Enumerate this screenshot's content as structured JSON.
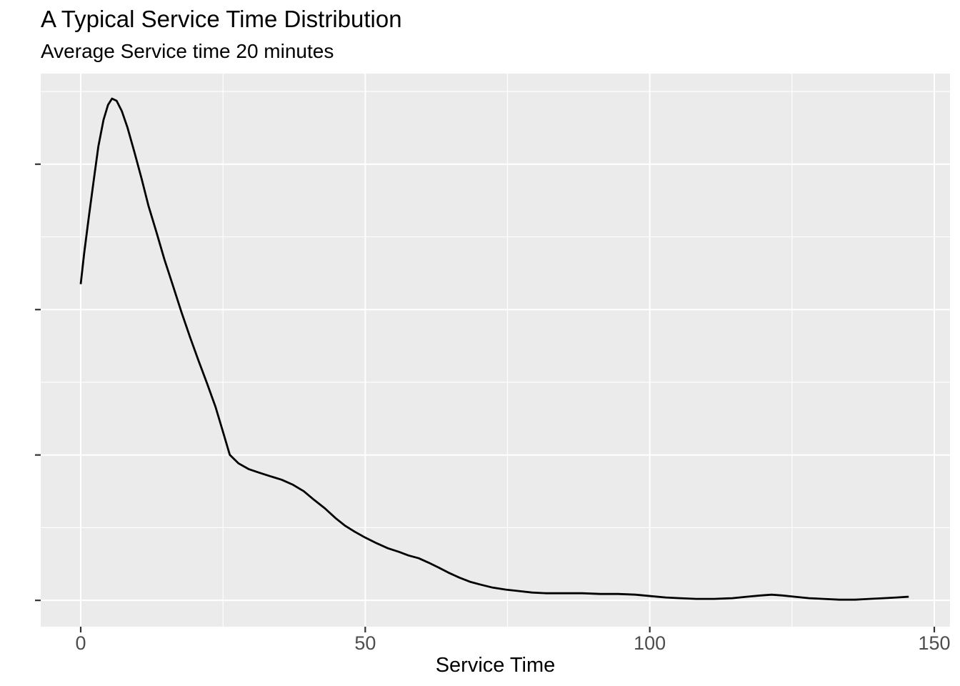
{
  "chart_data": {
    "type": "line",
    "subtype": "kernel-density",
    "title": "A Typical Service Time Distribution",
    "subtitle": "Average Service time 20 minutes",
    "xlabel": "Service Time",
    "ylabel": "",
    "x_tick_values": [
      0,
      50,
      100,
      150
    ],
    "x_tick_labels": [
      "0",
      "50",
      "100",
      "150"
    ],
    "y_tick_values": [
      0,
      0.01,
      0.02,
      0.03
    ],
    "y_tick_labels": [
      "",
      "",
      "",
      ""
    ],
    "y_tick_labels_visible": false,
    "x_minor": [
      25,
      75,
      125
    ],
    "y_minor": [
      0.005,
      0.015,
      0.025,
      0.035
    ],
    "xlim": [
      -7.03,
      152.76
    ],
    "ylim": [
      -0.00181,
      0.03623
    ],
    "grid": true,
    "legend": "none",
    "colors": {
      "panel_bg": "#EBEBEB",
      "grid": "#FFFFFF",
      "curve": "#000000",
      "axis_text": "#4D4D4D",
      "tick_mark": "#333333",
      "title_text": "#000000",
      "background": "#FFFFFF"
    },
    "series": [
      {
        "name": "service-time-density",
        "points": [
          [
            0.0,
            0.02175
          ],
          [
            0.6,
            0.02386
          ],
          [
            1.4,
            0.02631
          ],
          [
            2.3,
            0.02892
          ],
          [
            3.1,
            0.03122
          ],
          [
            4.0,
            0.03304
          ],
          [
            4.8,
            0.03407
          ],
          [
            5.5,
            0.03451
          ],
          [
            6.3,
            0.03436
          ],
          [
            7.2,
            0.03367
          ],
          [
            8.2,
            0.03255
          ],
          [
            9.4,
            0.03088
          ],
          [
            10.7,
            0.02901
          ],
          [
            11.9,
            0.02715
          ],
          [
            13.3,
            0.02533
          ],
          [
            14.7,
            0.02346
          ],
          [
            16.2,
            0.02165
          ],
          [
            17.7,
            0.01983
          ],
          [
            19.2,
            0.01811
          ],
          [
            20.7,
            0.01649
          ],
          [
            22.2,
            0.01492
          ],
          [
            23.7,
            0.0133
          ],
          [
            25.0,
            0.01159
          ],
          [
            26.2,
            0.01001
          ],
          [
            27.7,
            0.00943
          ],
          [
            29.5,
            0.00903
          ],
          [
            31.3,
            0.00879
          ],
          [
            33.3,
            0.00854
          ],
          [
            35.3,
            0.0083
          ],
          [
            37.3,
            0.00795
          ],
          [
            39.2,
            0.00751
          ],
          [
            41.0,
            0.00692
          ],
          [
            42.9,
            0.00633
          ],
          [
            44.8,
            0.00565
          ],
          [
            46.4,
            0.00515
          ],
          [
            48.2,
            0.00471
          ],
          [
            50.0,
            0.00432
          ],
          [
            52.0,
            0.00393
          ],
          [
            54.0,
            0.00358
          ],
          [
            55.9,
            0.00334
          ],
          [
            57.6,
            0.00309
          ],
          [
            59.4,
            0.0029
          ],
          [
            61.1,
            0.0026
          ],
          [
            62.9,
            0.00226
          ],
          [
            64.6,
            0.00191
          ],
          [
            66.5,
            0.00157
          ],
          [
            68.4,
            0.00128
          ],
          [
            70.3,
            0.00108
          ],
          [
            72.4,
            0.00088
          ],
          [
            74.7,
            0.00074
          ],
          [
            77.0,
            0.00064
          ],
          [
            79.3,
            0.00054
          ],
          [
            81.8,
            0.00049
          ],
          [
            85.0,
            0.00049
          ],
          [
            88.1,
            0.00049
          ],
          [
            91.3,
            0.00044
          ],
          [
            94.4,
            0.00044
          ],
          [
            97.5,
            0.00039
          ],
          [
            100.3,
            0.00029
          ],
          [
            102.8,
            0.0002
          ],
          [
            105.3,
            0.00015
          ],
          [
            108.2,
            0.0001
          ],
          [
            111.3,
            0.0001
          ],
          [
            114.5,
            0.00015
          ],
          [
            117.0,
            0.00025
          ],
          [
            119.5,
            0.00034
          ],
          [
            121.4,
            0.00039
          ],
          [
            123.3,
            0.00034
          ],
          [
            125.5,
            0.00025
          ],
          [
            128.0,
            0.00015
          ],
          [
            130.5,
            0.0001
          ],
          [
            133.3,
            5e-05
          ],
          [
            136.1,
            5e-05
          ],
          [
            138.6,
            0.0001
          ],
          [
            141.1,
            0.00015
          ],
          [
            143.4,
            0.0002
          ],
          [
            145.0,
            0.00024
          ],
          [
            145.5,
            0.00025
          ]
        ]
      }
    ]
  }
}
